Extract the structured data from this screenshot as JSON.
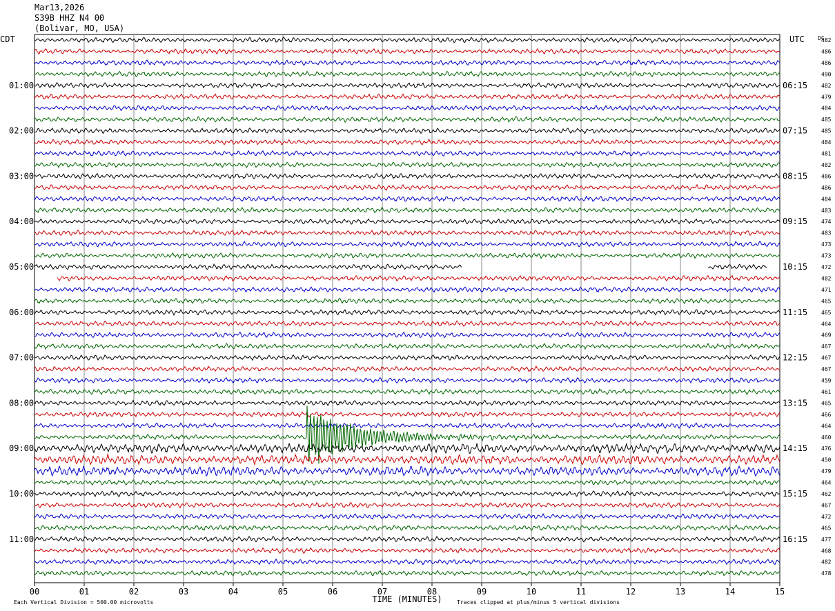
{
  "header": {
    "date": "Mar13,2026",
    "station": "S39B HHZ N4 00",
    "location": "(Bolivar, MO, USA)"
  },
  "chart_data": {
    "type": "line",
    "left_tz": "CDT",
    "right_tz": "UTC",
    "dc_label": "DC",
    "xlabel": "TIME (MINUTES)",
    "xlim": [
      0,
      15
    ],
    "x_ticks": [
      "00",
      "01",
      "02",
      "03",
      "04",
      "05",
      "06",
      "07",
      "08",
      "09",
      "10",
      "11",
      "12",
      "13",
      "14",
      "15"
    ],
    "left_hour_labels": [
      {
        "row": 4,
        "label": "01:00"
      },
      {
        "row": 8,
        "label": "02:00"
      },
      {
        "row": 12,
        "label": "03:00"
      },
      {
        "row": 16,
        "label": "04:00"
      },
      {
        "row": 20,
        "label": "05:00"
      },
      {
        "row": 24,
        "label": "06:00"
      },
      {
        "row": 28,
        "label": "07:00"
      },
      {
        "row": 32,
        "label": "08:00"
      },
      {
        "row": 36,
        "label": "09:00"
      },
      {
        "row": 40,
        "label": "10:00"
      },
      {
        "row": 44,
        "label": "11:00"
      }
    ],
    "right_hour_labels": [
      {
        "row": 4,
        "label": "06:15"
      },
      {
        "row": 8,
        "label": "07:15"
      },
      {
        "row": 12,
        "label": "08:15"
      },
      {
        "row": 16,
        "label": "09:15"
      },
      {
        "row": 20,
        "label": "10:15"
      },
      {
        "row": 24,
        "label": "11:15"
      },
      {
        "row": 28,
        "label": "12:15"
      },
      {
        "row": 32,
        "label": "13:15"
      },
      {
        "row": 36,
        "label": "14:15"
      },
      {
        "row": 40,
        "label": "15:15"
      },
      {
        "row": 44,
        "label": "16:15"
      }
    ],
    "dc_offsets": [
      482,
      486,
      486,
      490,
      482,
      479,
      484,
      485,
      485,
      484,
      481,
      482,
      486,
      486,
      484,
      483,
      474,
      483,
      473,
      473,
      472,
      482,
      471,
      465,
      465,
      464,
      469,
      467,
      467,
      467,
      459,
      461,
      465,
      466,
      464,
      460,
      476,
      450,
      479,
      464,
      462,
      467,
      472,
      465,
      477,
      468,
      482,
      478
    ],
    "trace_colors": [
      "#000000",
      "#cc0000",
      "#0000cc",
      "#006600"
    ],
    "gaps": [
      {
        "row": 20,
        "from_min": 8.6,
        "to_min": 13.55
      },
      {
        "row": 20,
        "from_min": 14.75,
        "to_min": 15.0
      },
      {
        "row": 21,
        "from_min": 0.0,
        "to_min": 0.45
      }
    ],
    "events": [
      {
        "row": 35,
        "start_min": 5.48,
        "peak_amplitude_divisions": 3.0,
        "decay_min": 3.0
      }
    ],
    "footer": {
      "scale_note": "Each Vertical Division =  500.00 microvolts",
      "clip_note": "Traces clipped at plus/minus 5 vertical divisions"
    }
  }
}
